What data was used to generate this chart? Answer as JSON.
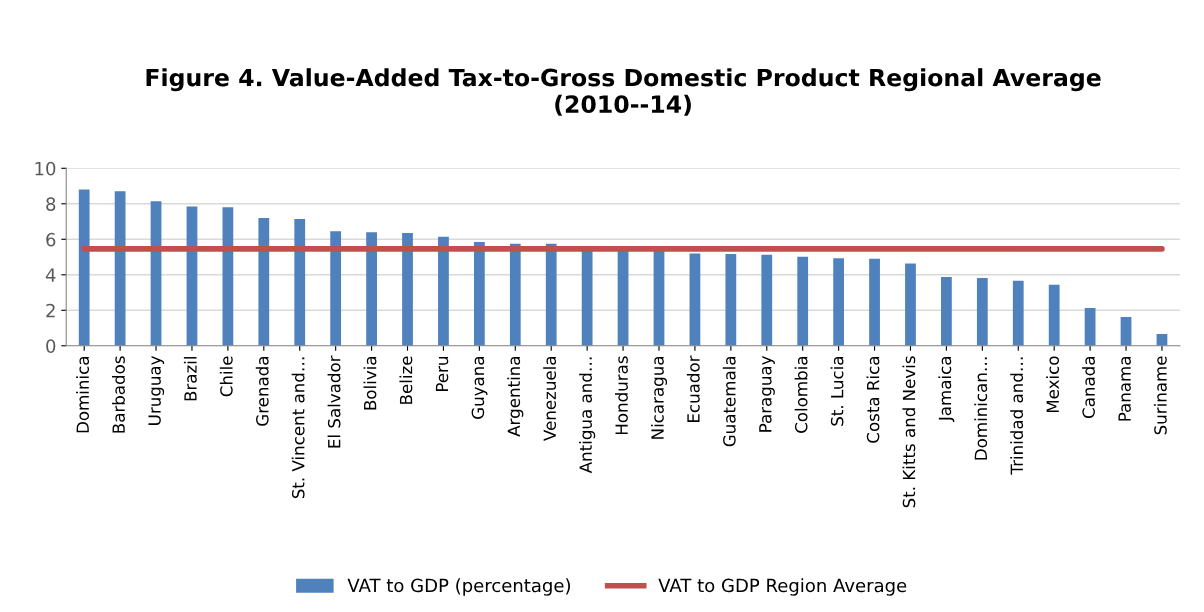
{
  "chart_data": {
    "type": "bar",
    "title": "Figure 4. Value-Added Tax-to-Gross Domestic Product Regional Average\n(2010--14)",
    "categories": [
      "Dominica",
      "Barbados",
      "Uruguay",
      "Brazil",
      "Chile",
      "Grenada",
      "St. Vincent and…",
      "El Salvador",
      "Bolivia",
      "Belize",
      "Peru",
      "Guyana",
      "Argentina",
      "Venezuela",
      "Antigua and…",
      "Honduras",
      "Nicaragua",
      "Ecuador",
      "Guatemala",
      "Paraguay",
      "Colombia",
      "St. Lucia",
      "Costa Rica",
      "St. Kitts and Nevis",
      "Jamaica",
      "Dominican…",
      "Trinidad and…",
      "Mexico",
      "Canada",
      "Panama",
      "Suriname"
    ],
    "series": [
      {
        "name": "VAT to GDP (percentage)",
        "color": "#4f81bd",
        "values": [
          8.8,
          8.7,
          8.15,
          7.85,
          7.8,
          7.2,
          7.15,
          6.45,
          6.4,
          6.35,
          6.15,
          5.85,
          5.75,
          5.75,
          5.45,
          5.45,
          5.45,
          5.2,
          5.17,
          5.13,
          5.02,
          4.93,
          4.9,
          4.63,
          3.87,
          3.82,
          3.66,
          3.44,
          2.13,
          1.62,
          0.67
        ]
      },
      {
        "name": "VAT to GDP Region Average",
        "type": "line",
        "color": "#c0504d",
        "values": [
          5.46,
          5.46,
          5.46,
          5.46,
          5.46,
          5.46,
          5.46,
          5.46,
          5.46,
          5.46,
          5.46,
          5.46,
          5.46,
          5.46,
          5.46,
          5.46,
          5.46,
          5.46,
          5.46,
          5.46,
          5.46,
          5.46,
          5.46,
          5.46,
          5.46,
          5.46,
          5.46,
          5.46,
          5.46,
          5.46,
          5.46
        ]
      }
    ],
    "ylim": [
      0,
      10
    ],
    "yticks": [
      0,
      2,
      4,
      6,
      8,
      10
    ],
    "grid": "y",
    "legend": "bottom"
  }
}
